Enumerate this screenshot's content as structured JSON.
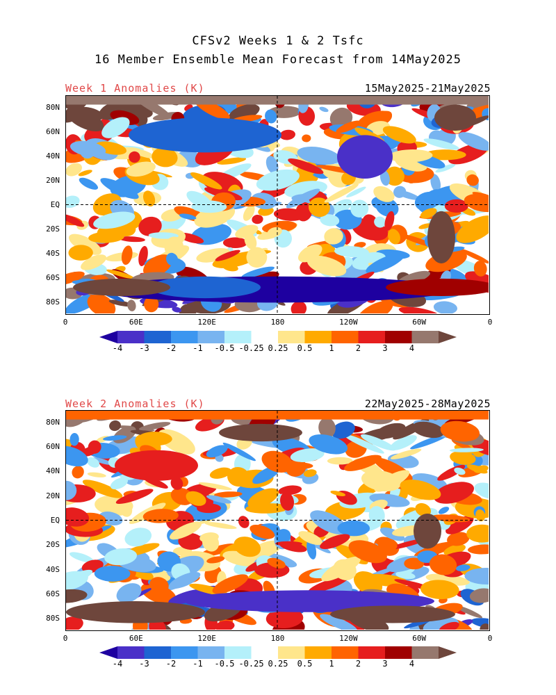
{
  "title_line1": "CFSv2 Weeks 1 & 2 Tsfc",
  "title_line2": "16 Member Ensemble Mean Forecast from 14May2025",
  "panels": [
    {
      "label": "Week 1 Anomalies (K)",
      "date_range": "15May2025-21May2025"
    },
    {
      "label": "Week 2 Anomalies (K)",
      "date_range": "22May2025-28May2025"
    }
  ],
  "lat_labels": [
    "80N",
    "60N",
    "40N",
    "20N",
    "EQ",
    "20S",
    "40S",
    "60S",
    "80S"
  ],
  "lon_labels": [
    "0",
    "60E",
    "120E",
    "180",
    "120W",
    "60W",
    "0"
  ],
  "colorbar": {
    "labels": [
      "-4",
      "-3",
      "-2",
      "-1",
      "-0.5",
      "-0.25",
      "0.25",
      "0.5",
      "1",
      "2",
      "3",
      "4"
    ],
    "colors": [
      "#1e00a0",
      "#4a30c8",
      "#1e64d2",
      "#3c96f0",
      "#78b4f0",
      "#b4f0fa",
      "#ffffff",
      "#ffe68c",
      "#ffaa00",
      "#ff6400",
      "#e61e1e",
      "#a00000",
      "#96786e",
      "#6e463c"
    ]
  }
}
